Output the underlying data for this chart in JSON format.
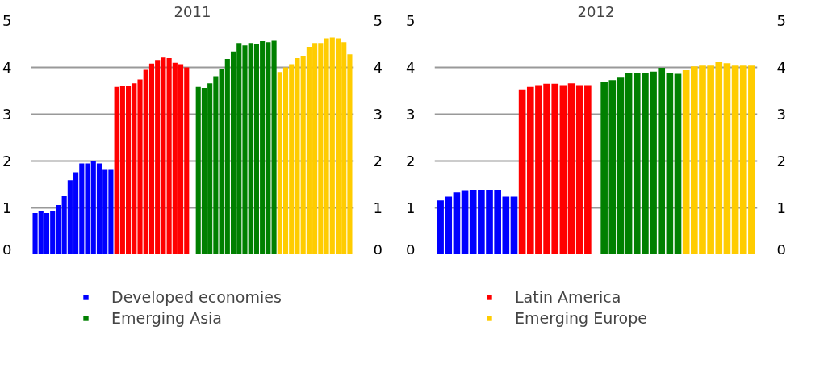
{
  "chart_data": [
    {
      "type": "bar",
      "title": "2011",
      "categories": [
        null,
        null,
        null,
        null,
        null,
        null,
        null,
        null,
        null,
        null,
        null,
        null,
        null,
        null,
        null,
        null,
        null,
        null,
        null,
        null,
        null,
        null,
        null,
        null,
        null,
        null,
        null,
        null,
        null,
        null,
        null,
        null,
        null,
        null,
        null,
        null,
        null,
        null,
        null,
        null,
        null,
        null,
        null,
        null,
        null,
        null,
        null,
        null,
        null,
        null,
        null,
        null,
        null,
        null,
        null
      ],
      "series": [
        {
          "name": "Developed economies",
          "color": "#0000ff",
          "values": [
            0.89,
            0.93,
            0.89,
            0.93,
            1.06,
            1.25,
            1.59,
            1.76,
            1.95,
            1.95,
            2.0,
            1.95,
            1.81,
            1.81,
            null,
            null,
            null,
            null,
            null,
            null,
            null,
            null,
            null,
            null,
            null,
            null,
            null,
            null,
            null,
            null,
            null,
            null,
            null,
            null,
            null,
            null,
            null,
            null,
            null,
            null,
            null,
            null,
            null,
            null,
            null,
            null,
            null,
            null,
            null,
            null,
            null,
            null,
            null,
            null,
            null
          ]
        },
        {
          "color": "#ff0000",
          "values": [
            null,
            null,
            null,
            null,
            null,
            null,
            null,
            null,
            null,
            null,
            null,
            null,
            null,
            null,
            3.58,
            3.61,
            3.6,
            3.66,
            3.74,
            3.95,
            4.08,
            4.16,
            4.21,
            4.2,
            4.1,
            4.07,
            4.0,
            null,
            null,
            null,
            null,
            null,
            null,
            null,
            null,
            null,
            null,
            null,
            null,
            null,
            null,
            null,
            null,
            null,
            null,
            null,
            null,
            null,
            null,
            null,
            null,
            null,
            null,
            null,
            null
          ]
        },
        {
          "name": "Emerging Asia",
          "color": "#008000",
          "values": [
            null,
            null,
            null,
            null,
            null,
            null,
            null,
            null,
            null,
            null,
            null,
            null,
            null,
            null,
            null,
            null,
            null,
            null,
            null,
            null,
            null,
            null,
            null,
            null,
            null,
            null,
            null,
            null,
            3.58,
            3.56,
            3.66,
            3.81,
            3.97,
            4.18,
            4.34,
            4.52,
            4.47,
            4.52,
            4.51,
            4.56,
            4.54,
            4.57,
            null,
            null,
            null,
            null,
            null,
            null,
            null,
            null,
            null,
            null,
            null,
            null,
            null
          ]
        },
        {
          "color": "#ffcc00",
          "values": [
            null,
            null,
            null,
            null,
            null,
            null,
            null,
            null,
            null,
            null,
            null,
            null,
            null,
            null,
            null,
            null,
            null,
            null,
            null,
            null,
            null,
            null,
            null,
            null,
            null,
            null,
            null,
            null,
            null,
            null,
            null,
            null,
            null,
            null,
            null,
            null,
            null,
            null,
            null,
            null,
            null,
            null,
            3.9,
            4.0,
            4.07,
            4.2,
            4.25,
            4.44,
            4.52,
            4.52,
            4.62,
            4.64,
            4.62,
            4.54,
            4.28
          ]
        }
      ],
      "ylim": [
        0,
        5
      ],
      "yticks": [
        0,
        1,
        2,
        3,
        4,
        5
      ],
      "y2lim": [
        0,
        5
      ],
      "y2ticks": [
        0,
        1,
        2,
        3,
        4,
        5
      ],
      "grid": "y",
      "legend": "bottom",
      "tick_labels": "y"
    },
    {
      "type": "bar",
      "title": "2012",
      "categories": [
        null,
        null,
        null,
        null,
        null,
        null,
        null,
        null,
        null,
        null,
        null,
        null,
        null,
        null,
        null,
        null,
        null,
        null,
        null,
        null,
        null,
        null,
        null,
        null,
        null,
        null,
        null,
        null,
        null,
        null,
        null,
        null,
        null,
        null,
        null,
        null,
        null,
        null,
        null
      ],
      "series": [
        {
          "color": "#0000ff",
          "values": [
            1.16,
            1.24,
            1.33,
            1.36,
            1.39,
            1.39,
            1.39,
            1.39,
            1.24,
            1.24,
            null,
            null,
            null,
            null,
            null,
            null,
            null,
            null,
            null,
            null,
            null,
            null,
            null,
            null,
            null,
            null,
            null,
            null,
            null,
            null,
            null,
            null,
            null,
            null,
            null,
            null,
            null,
            null,
            null
          ]
        },
        {
          "name": "Latin America",
          "color": "#ff0000",
          "values": [
            null,
            null,
            null,
            null,
            null,
            null,
            null,
            null,
            null,
            null,
            3.53,
            3.58,
            3.62,
            3.65,
            3.65,
            3.62,
            3.66,
            3.62,
            3.62,
            null,
            null,
            null,
            null,
            null,
            null,
            null,
            null,
            null,
            null,
            null,
            null,
            null,
            null,
            null,
            null,
            null,
            null,
            null,
            null
          ]
        },
        {
          "color": "#008000",
          "values": [
            null,
            null,
            null,
            null,
            null,
            null,
            null,
            null,
            null,
            null,
            null,
            null,
            null,
            null,
            null,
            null,
            null,
            null,
            null,
            null,
            3.68,
            3.73,
            3.78,
            3.89,
            3.89,
            3.89,
            3.91,
            3.99,
            3.88,
            3.86,
            null,
            null,
            null,
            null,
            null,
            null,
            null,
            null,
            null
          ]
        },
        {
          "name": "Emerging Europe",
          "color": "#ffcc00",
          "values": [
            null,
            null,
            null,
            null,
            null,
            null,
            null,
            null,
            null,
            null,
            null,
            null,
            null,
            null,
            null,
            null,
            null,
            null,
            null,
            null,
            null,
            null,
            null,
            null,
            null,
            null,
            null,
            null,
            null,
            null,
            3.94,
            4.02,
            4.04,
            4.04,
            4.11,
            4.09,
            4.04,
            4.04,
            4.04
          ]
        }
      ],
      "ylim": [
        0,
        5
      ],
      "yticks": [
        0,
        1,
        2,
        3,
        4,
        5
      ],
      "y2lim": [
        0,
        5
      ],
      "y2ticks": [
        0,
        1,
        2,
        3,
        4,
        5
      ],
      "grid": "y",
      "legend": "bottom",
      "tick_labels": "y"
    }
  ]
}
